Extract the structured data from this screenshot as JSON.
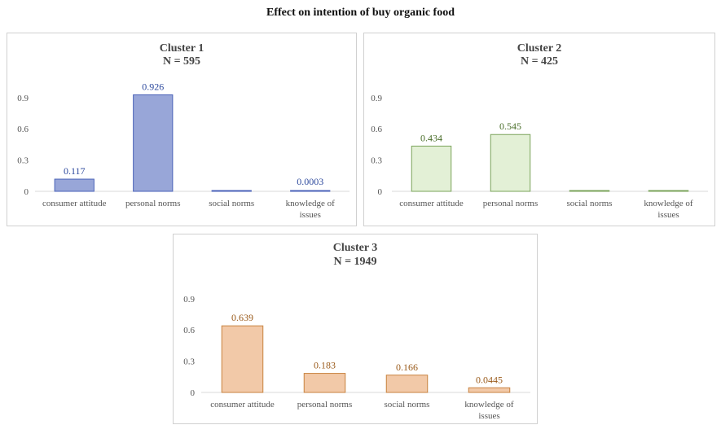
{
  "title": "Effect on intention of buy organic food",
  "chart_data": [
    {
      "type": "bar",
      "title": "Cluster 1",
      "subtitle": "N = 595",
      "categories": [
        "consumer attitude",
        "personal norms",
        "social norms",
        "knowledge of issues"
      ],
      "values": [
        0.117,
        0.926,
        0,
        0.0003
      ],
      "data_labels": [
        "0.117",
        "0.926",
        "",
        "0.0003"
      ],
      "yticks": [
        "0",
        "0.3",
        "0.6",
        "0.9"
      ],
      "ylim": [
        0,
        1.0
      ],
      "colors": {
        "fill": "#98a6d8",
        "stroke": "#4a62b8",
        "label": "#2e4a9e"
      }
    },
    {
      "type": "bar",
      "title": "Cluster 2",
      "subtitle": "N = 425",
      "categories": [
        "consumer attitude",
        "personal norms",
        "social norms",
        "knowledge of issues"
      ],
      "values": [
        0.434,
        0.545,
        0,
        0
      ],
      "data_labels": [
        "0.434",
        "0.545",
        "",
        ""
      ],
      "yticks": [
        "0",
        "0.3",
        "0.6",
        "0.9"
      ],
      "ylim": [
        0,
        1.0
      ],
      "colors": {
        "fill": "#e3f0d6",
        "stroke": "#7aa35a",
        "label": "#4a6e2a"
      }
    },
    {
      "type": "bar",
      "title": "Cluster 3",
      "subtitle": "N = 1949",
      "categories": [
        "consumer attitude",
        "personal norms",
        "social norms",
        "knowledge of issues"
      ],
      "values": [
        0.639,
        0.183,
        0.166,
        0.0445
      ],
      "data_labels": [
        "0.639",
        "0.183",
        "0.166",
        "0.0445"
      ],
      "yticks": [
        "0",
        "0.3",
        "0.6",
        "0.9"
      ],
      "ylim": [
        0,
        1.0
      ],
      "colors": {
        "fill": "#f2c9a8",
        "stroke": "#c8823f",
        "label": "#9a5a1a"
      }
    }
  ]
}
